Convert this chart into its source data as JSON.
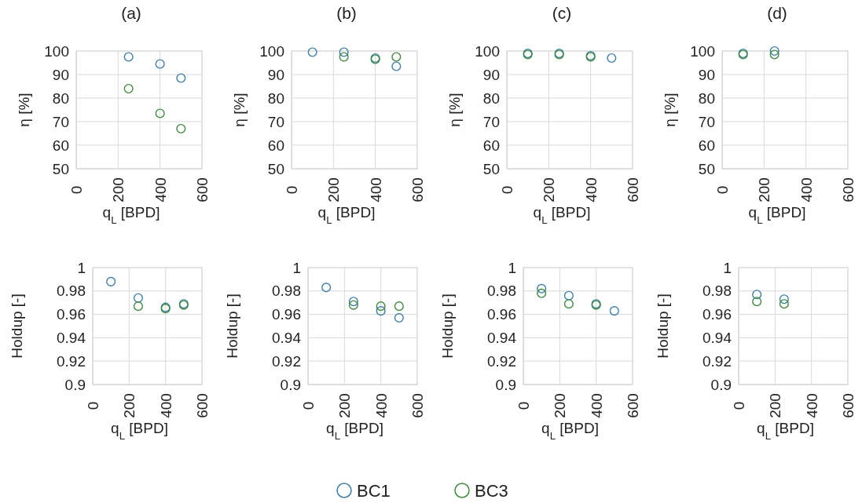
{
  "chart_data": [
    {
      "type": "scatter",
      "title": "(a)",
      "xlabel": "q$_{L}$ [BPD]",
      "ylabel": "η [%]",
      "xlim": [
        0,
        600
      ],
      "xticks": [
        0,
        200,
        400,
        600
      ],
      "ylim": [
        50,
        100
      ],
      "yticks": [
        50,
        60,
        70,
        80,
        90,
        100
      ],
      "grid": true,
      "marker": "circle",
      "series": [
        {
          "color": "#3a7fae",
          "x": [
            250,
            400,
            500
          ],
          "values": [
            97.5,
            94.5,
            88.5
          ]
        },
        {
          "color": "#3d8c3d",
          "x": [
            250,
            400,
            500
          ],
          "values": [
            84,
            73.5,
            67
          ]
        }
      ]
    },
    {
      "type": "scatter",
      "title": "(b)",
      "xlabel": "q$_{L}$ [BPD]",
      "ylabel": "η [%]",
      "xlim": [
        0,
        600
      ],
      "xticks": [
        0,
        200,
        400,
        600
      ],
      "ylim": [
        50,
        100
      ],
      "yticks": [
        50,
        60,
        70,
        80,
        90,
        100
      ],
      "grid": true,
      "marker": "circle",
      "series": [
        {
          "color": "#3a7fae",
          "x": [
            100,
            250,
            400,
            500
          ],
          "values": [
            99.5,
            99.5,
            97,
            93.5
          ]
        },
        {
          "color": "#3d8c3d",
          "x": [
            250,
            400,
            500
          ],
          "values": [
            97.5,
            96.5,
            97.5
          ]
        }
      ]
    },
    {
      "type": "scatter",
      "title": "(c)",
      "xlabel": "q$_{L}$ [BPD]",
      "ylabel": "η [%]",
      "xlim": [
        0,
        600
      ],
      "xticks": [
        0,
        200,
        400,
        600
      ],
      "ylim": [
        50,
        100
      ],
      "yticks": [
        50,
        60,
        70,
        80,
        90,
        100
      ],
      "grid": true,
      "marker": "circle",
      "series": [
        {
          "color": "#3a7fae",
          "x": [
            100,
            250,
            400,
            500
          ],
          "values": [
            99,
            99,
            98,
            97
          ]
        },
        {
          "color": "#3d8c3d",
          "x": [
            100,
            250,
            400
          ],
          "values": [
            98.5,
            98.5,
            97.5
          ]
        }
      ]
    },
    {
      "type": "scatter",
      "title": "(d)",
      "xlabel": "q$_{L}$ [BPD]",
      "ylabel": "η [%]",
      "xlim": [
        0,
        600
      ],
      "xticks": [
        0,
        200,
        400,
        600
      ],
      "ylim": [
        50,
        100
      ],
      "yticks": [
        50,
        60,
        70,
        80,
        90,
        100
      ],
      "grid": true,
      "marker": "circle",
      "series": [
        {
          "color": "#3a7fae",
          "x": [
            100,
            250
          ],
          "values": [
            99,
            100
          ]
        },
        {
          "color": "#3d8c3d",
          "x": [
            100,
            250
          ],
          "values": [
            98.5,
            98.5
          ]
        }
      ]
    },
    {
      "type": "scatter",
      "xlabel": "q$_{L}$ [BPD]",
      "ylabel": "Holdup [-]",
      "xlim": [
        0,
        600
      ],
      "xticks": [
        0,
        200,
        400,
        600
      ],
      "ylim": [
        0.9,
        1
      ],
      "yticks": [
        0.9,
        0.92,
        0.94,
        0.96,
        0.98,
        1
      ],
      "grid": true,
      "marker": "circle",
      "series": [
        {
          "color": "#3a7fae",
          "x": [
            100,
            250,
            400,
            500
          ],
          "values": [
            0.988,
            0.974,
            0.966,
            0.969
          ]
        },
        {
          "color": "#3d8c3d",
          "x": [
            250,
            400,
            500
          ],
          "values": [
            0.967,
            0.965,
            0.968
          ]
        }
      ]
    },
    {
      "type": "scatter",
      "xlabel": "q$_{L}$ [BPD]",
      "ylabel": "Holdup [-]",
      "xlim": [
        0,
        600
      ],
      "xticks": [
        0,
        200,
        400,
        600
      ],
      "ylim": [
        0.9,
        1
      ],
      "yticks": [
        0.9,
        0.92,
        0.94,
        0.96,
        0.98,
        1
      ],
      "grid": true,
      "marker": "circle",
      "series": [
        {
          "color": "#3a7fae",
          "x": [
            100,
            250,
            400,
            500
          ],
          "values": [
            0.983,
            0.971,
            0.963,
            0.957
          ]
        },
        {
          "color": "#3d8c3d",
          "x": [
            250,
            400,
            500
          ],
          "values": [
            0.968,
            0.967,
            0.967
          ]
        }
      ]
    },
    {
      "type": "scatter",
      "xlabel": "q$_{L}$ [BPD]",
      "ylabel": "Holdup [-]",
      "xlim": [
        0,
        600
      ],
      "xticks": [
        0,
        200,
        400,
        600
      ],
      "ylim": [
        0.9,
        1
      ],
      "yticks": [
        0.9,
        0.92,
        0.94,
        0.96,
        0.98,
        1
      ],
      "grid": true,
      "marker": "circle",
      "series": [
        {
          "color": "#3a7fae",
          "x": [
            100,
            250,
            400,
            500
          ],
          "values": [
            0.982,
            0.976,
            0.969,
            0.963
          ]
        },
        {
          "color": "#3d8c3d",
          "x": [
            100,
            250,
            400
          ],
          "values": [
            0.978,
            0.969,
            0.968
          ]
        }
      ]
    },
    {
      "type": "scatter",
      "xlabel": "q$_{L}$ [BPD]",
      "ylabel": "Holdup [-]",
      "xlim": [
        0,
        600
      ],
      "xticks": [
        0,
        200,
        400,
        600
      ],
      "ylim": [
        0.9,
        1
      ],
      "yticks": [
        0.9,
        0.92,
        0.94,
        0.96,
        0.98,
        1
      ],
      "grid": true,
      "marker": "circle",
      "legend": "bottom",
      "series": [
        {
          "name": "BC1",
          "color": "#3a7fae",
          "x": [
            100,
            250
          ],
          "values": [
            0.977,
            0.973
          ]
        },
        {
          "name": "BC3",
          "color": "#3d8c3d",
          "x": [
            100,
            250
          ],
          "values": [
            0.971,
            0.969
          ]
        }
      ]
    }
  ]
}
